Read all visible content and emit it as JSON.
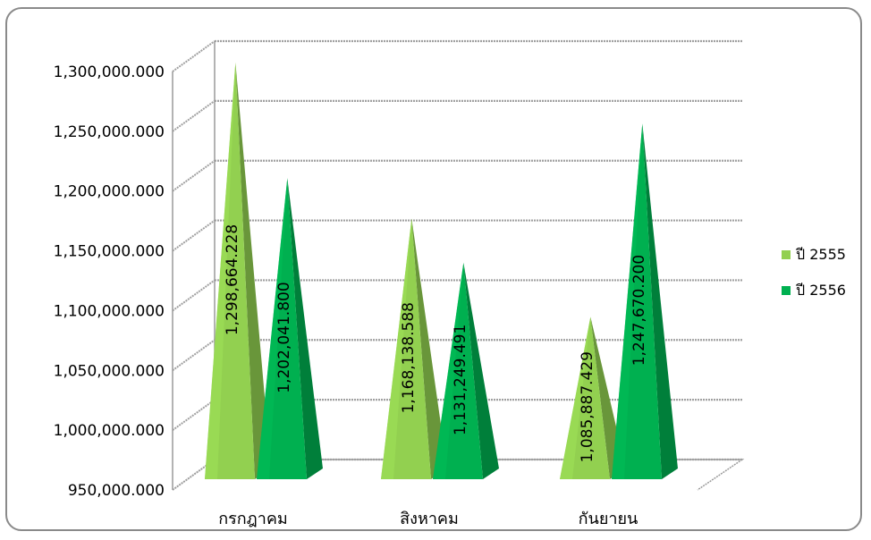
{
  "chart_data": {
    "type": "bar",
    "style": "3d-pyramid",
    "categories": [
      "กรกฎาคม",
      "สิงหาคม",
      "กันยายน"
    ],
    "series": [
      {
        "name": "ปี 2555",
        "values": [
          1298664.228,
          1168138.588,
          1085887.429
        ],
        "labels": [
          "1,298,664.228",
          "1,168,138.588",
          "1,085,887.429"
        ],
        "color": "#92d050"
      },
      {
        "name": "ปี 2556",
        "values": [
          1202041.8,
          1131249.491,
          1247670.2
        ],
        "labels": [
          "1,202,041.800",
          "1,131,249.491",
          "1,247,670.200"
        ],
        "color": "#00b050"
      }
    ],
    "ylim": [
      950000,
      1300000
    ],
    "yticks": [
      950000,
      1000000,
      1050000,
      1100000,
      1150000,
      1200000,
      1250000,
      1300000
    ],
    "ytick_labels": [
      "950,000.000",
      "1,000,000.000",
      "1,050,000.000",
      "1,100,000.000",
      "1,150,000.000",
      "1,200,000.000",
      "1,250,000.000",
      "1,300,000.000"
    ],
    "grid": true,
    "legend": "right",
    "legend_entries": [
      "ปี  2555",
      "ปี  2556"
    ]
  }
}
